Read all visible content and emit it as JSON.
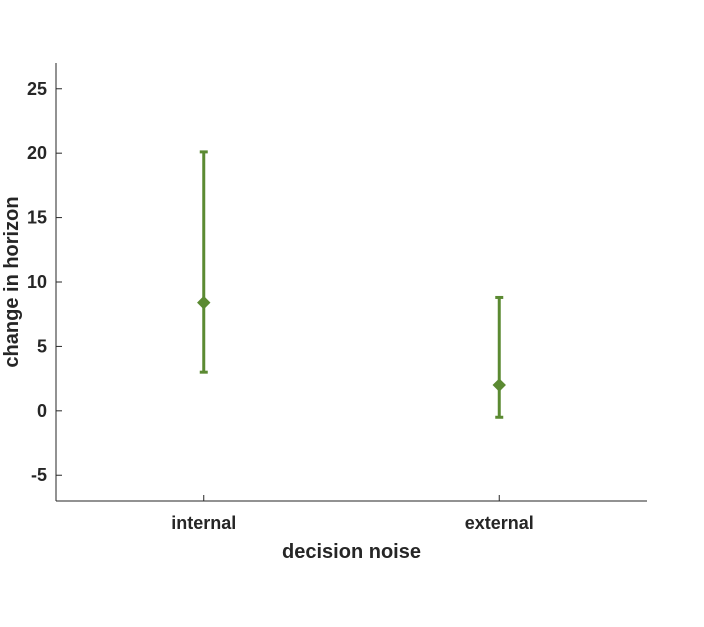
{
  "chart_data": {
    "type": "errorbar",
    "title": "",
    "xlabel": "decision noise",
    "ylabel": "change in horizon",
    "categories": [
      "internal",
      "external"
    ],
    "values": [
      8.4,
      2.0
    ],
    "lower": [
      3.0,
      -0.5
    ],
    "upper": [
      20.1,
      8.8
    ],
    "ylim": [
      -7,
      27
    ],
    "yticks": [
      -5,
      0,
      5,
      10,
      15,
      20,
      25
    ],
    "ytick_labels": [
      "-5",
      "0",
      "5",
      "10",
      "15",
      "20",
      "25"
    ],
    "marker": "diamond",
    "color": "#5b8a32",
    "grid": false,
    "legend": false
  }
}
